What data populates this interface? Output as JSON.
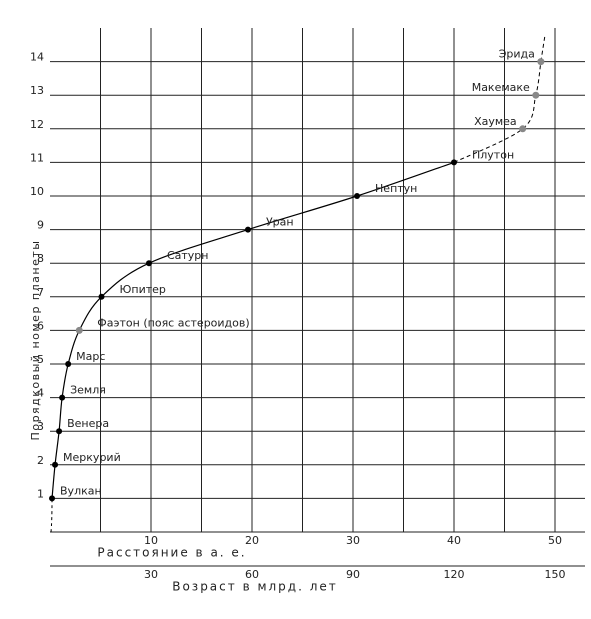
{
  "chart_data": {
    "type": "line",
    "y_label": "Порядковый номер планеты",
    "x_label": "Расстояние в а. е.",
    "x2_label": "Возраст в млрд. лет",
    "labels": [
      "Вулкан",
      "Меркурий",
      "Венера",
      "Земля",
      "Марс",
      "Фаэтон (пояс астероидов)",
      "Юпитер",
      "Сатурн",
      "Уран",
      "Нептун",
      "Плутон",
      "Хаумеа",
      "Макемаке",
      "Эрида"
    ],
    "x": [
      0.2,
      0.5,
      0.9,
      1.2,
      1.8,
      2.9,
      5.1,
      9.8,
      19.6,
      30.4,
      40.0,
      46.8,
      48.1,
      48.6
    ],
    "values": [
      1,
      2,
      3,
      4,
      5,
      6,
      7,
      8,
      9,
      10,
      11,
      12,
      13,
      14
    ],
    "point_colors": [
      "#000",
      "#000",
      "#000",
      "#000",
      "#000",
      "#888",
      "#000",
      "#000",
      "#000",
      "#000",
      "#000",
      "#888",
      "#888",
      "#888"
    ],
    "xlim": [
      0,
      50
    ],
    "xticks": [
      10,
      20,
      30,
      40,
      50
    ],
    "x2lim": [
      0,
      150
    ],
    "x2ticks": [
      30,
      60,
      90,
      120,
      150
    ],
    "ylim": [
      0,
      15
    ],
    "yticks": [
      1,
      2,
      3,
      4,
      5,
      6,
      7,
      8,
      9,
      10,
      11,
      12,
      13,
      14
    ],
    "xgrid": [
      5,
      10,
      15,
      20,
      25,
      30,
      35,
      40,
      45,
      50
    ]
  }
}
